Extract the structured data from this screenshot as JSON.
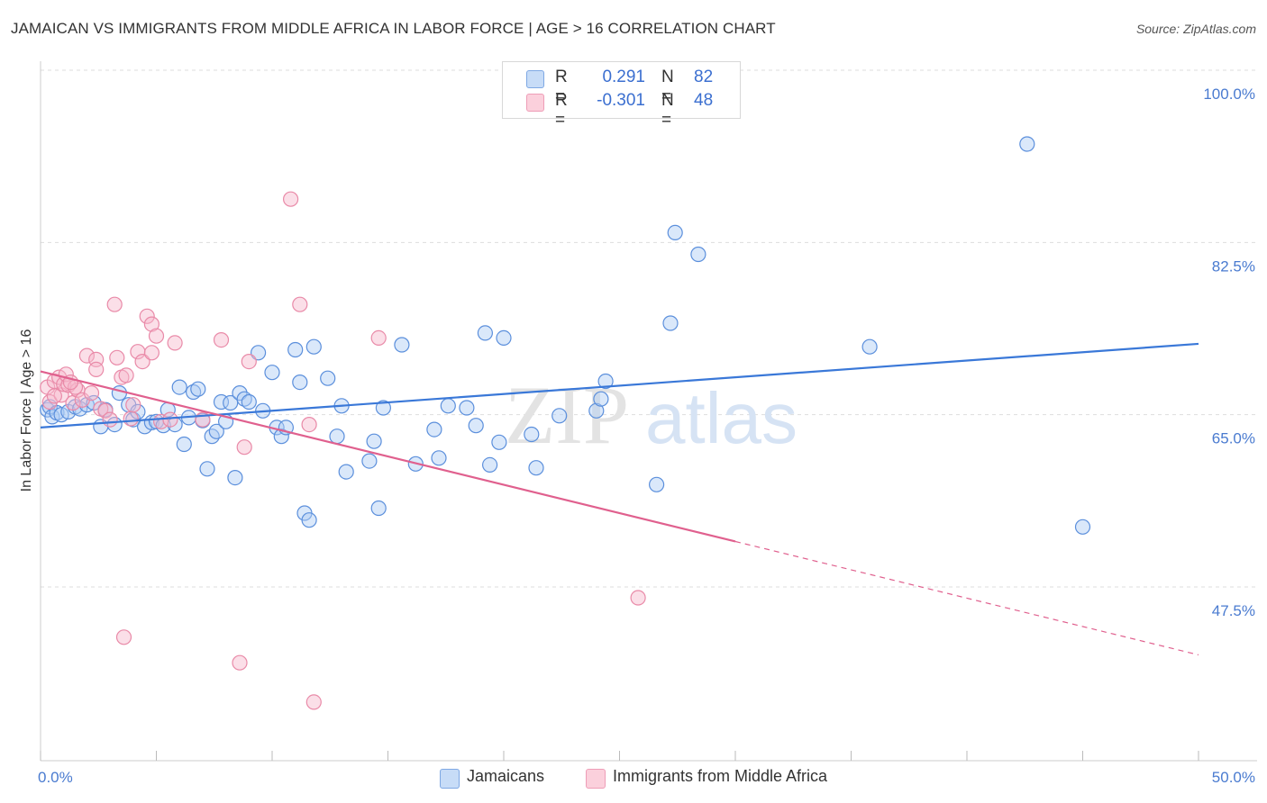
{
  "header": {
    "title": "JAMAICAN VS IMMIGRANTS FROM MIDDLE AFRICA IN LABOR FORCE | AGE > 16 CORRELATION CHART",
    "source": "Source: ZipAtlas.com"
  },
  "watermark": {
    "part1": "ZIP",
    "part2": "atlas"
  },
  "legend": {
    "rows": [
      {
        "r_label": "R =",
        "r_value": "0.291",
        "n_label": "N =",
        "n_value": "82"
      },
      {
        "r_label": "R =",
        "r_value": "-0.301",
        "n_label": "N =",
        "n_value": "48"
      }
    ]
  },
  "bottom_legend": {
    "series1": "Jamaicans",
    "series2": "Immigrants from Middle Africa"
  },
  "colors": {
    "blue_fill": "#aecbf5",
    "blue_stroke": "#5b8fdc",
    "blue_line": "#3a78d8",
    "pink_fill": "#f7b8cb",
    "pink_stroke": "#e98aa8",
    "pink_line": "#e0608e",
    "grid": "#dddddd",
    "tick_text": "#4a7bd0"
  },
  "chart_data": {
    "type": "scatter",
    "title": "JAMAICAN VS IMMIGRANTS FROM MIDDLE AFRICA IN LABOR FORCE | AGE > 16 CORRELATION CHART",
    "xlabel": "",
    "ylabel": "In Labor Force | Age > 16",
    "xlim": [
      0,
      50
    ],
    "ylim": [
      32,
      102
    ],
    "x_tick_labels": [
      "0.0%",
      "50.0%"
    ],
    "y_ticks": [
      47.5,
      65.0,
      82.5,
      100.0
    ],
    "y_tick_labels": [
      "47.5%",
      "65.0%",
      "82.5%",
      "100.0%"
    ],
    "grid": true,
    "legend_position": "top-center",
    "series": [
      {
        "name": "Jamaicans",
        "color": "#5b8fdc",
        "trend": {
          "x": [
            0,
            50
          ],
          "y": [
            63.7,
            72.2
          ],
          "dashed_from": null
        },
        "points": [
          [
            0.3,
            65.5
          ],
          [
            0.4,
            65.8
          ],
          [
            0.5,
            64.8
          ],
          [
            0.7,
            65.2
          ],
          [
            0.9,
            65.0
          ],
          [
            1.2,
            65.3
          ],
          [
            1.5,
            65.8
          ],
          [
            1.7,
            65.6
          ],
          [
            2.0,
            66.0
          ],
          [
            2.3,
            66.2
          ],
          [
            2.6,
            63.8
          ],
          [
            2.8,
            65.5
          ],
          [
            3.2,
            64.0
          ],
          [
            3.4,
            67.2
          ],
          [
            3.8,
            66.0
          ],
          [
            4.0,
            64.5
          ],
          [
            4.2,
            65.3
          ],
          [
            4.5,
            63.8
          ],
          [
            4.8,
            64.2
          ],
          [
            5.0,
            64.3
          ],
          [
            5.3,
            63.9
          ],
          [
            5.5,
            65.5
          ],
          [
            5.8,
            64.0
          ],
          [
            6.0,
            67.8
          ],
          [
            6.2,
            62.0
          ],
          [
            6.4,
            64.7
          ],
          [
            6.6,
            67.3
          ],
          [
            6.8,
            67.6
          ],
          [
            7.0,
            64.4
          ],
          [
            7.2,
            59.5
          ],
          [
            7.4,
            62.8
          ],
          [
            7.6,
            63.3
          ],
          [
            7.8,
            66.3
          ],
          [
            8.0,
            64.3
          ],
          [
            8.2,
            66.2
          ],
          [
            8.4,
            58.6
          ],
          [
            8.6,
            67.2
          ],
          [
            8.8,
            66.6
          ],
          [
            9.0,
            66.3
          ],
          [
            9.6,
            65.4
          ],
          [
            9.4,
            71.3
          ],
          [
            10.0,
            69.3
          ],
          [
            10.2,
            63.7
          ],
          [
            10.4,
            62.8
          ],
          [
            10.6,
            63.7
          ],
          [
            11.0,
            71.6
          ],
          [
            11.2,
            68.3
          ],
          [
            11.4,
            55.0
          ],
          [
            11.6,
            54.3
          ],
          [
            11.8,
            71.9
          ],
          [
            12.4,
            68.7
          ],
          [
            12.8,
            62.8
          ],
          [
            13.0,
            65.9
          ],
          [
            13.2,
            59.2
          ],
          [
            14.2,
            60.3
          ],
          [
            14.4,
            62.3
          ],
          [
            14.6,
            55.5
          ],
          [
            14.8,
            65.7
          ],
          [
            15.6,
            72.1
          ],
          [
            16.2,
            60.0
          ],
          [
            17.0,
            63.5
          ],
          [
            17.2,
            60.6
          ],
          [
            17.6,
            65.9
          ],
          [
            18.4,
            65.7
          ],
          [
            18.8,
            63.9
          ],
          [
            19.2,
            73.3
          ],
          [
            19.4,
            59.9
          ],
          [
            19.8,
            62.2
          ],
          [
            20.0,
            72.8
          ],
          [
            21.2,
            63.0
          ],
          [
            21.4,
            59.6
          ],
          [
            22.4,
            64.9
          ],
          [
            24.0,
            65.4
          ],
          [
            24.2,
            66.6
          ],
          [
            24.4,
            68.4
          ],
          [
            26.6,
            57.9
          ],
          [
            27.2,
            74.3
          ],
          [
            27.4,
            83.5
          ],
          [
            28.4,
            81.3
          ],
          [
            35.8,
            71.9
          ],
          [
            42.6,
            92.5
          ],
          [
            45.0,
            53.6
          ]
        ]
      },
      {
        "name": "Immigrants from Middle Africa",
        "color": "#e98aa8",
        "trend": {
          "x": [
            0,
            50
          ],
          "y": [
            69.4,
            40.6
          ],
          "dashed_from": 30
        },
        "points": [
          [
            0.3,
            67.8
          ],
          [
            0.4,
            66.3
          ],
          [
            0.6,
            68.4
          ],
          [
            0.8,
            68.8
          ],
          [
            0.9,
            67.0
          ],
          [
            1.0,
            68.1
          ],
          [
            1.1,
            69.1
          ],
          [
            1.2,
            68.0
          ],
          [
            1.4,
            66.2
          ],
          [
            1.6,
            67.5
          ],
          [
            1.8,
            66.5
          ],
          [
            2.0,
            71.0
          ],
          [
            2.2,
            67.2
          ],
          [
            2.4,
            70.6
          ],
          [
            2.6,
            65.6
          ],
          [
            2.8,
            65.4
          ],
          [
            3.0,
            64.5
          ],
          [
            3.2,
            76.2
          ],
          [
            3.3,
            70.8
          ],
          [
            3.5,
            68.8
          ],
          [
            3.7,
            69.0
          ],
          [
            3.9,
            64.6
          ],
          [
            4.0,
            66.0
          ],
          [
            4.2,
            71.4
          ],
          [
            4.4,
            70.4
          ],
          [
            4.6,
            75.0
          ],
          [
            4.8,
            74.2
          ],
          [
            5.0,
            73.0
          ],
          [
            5.2,
            64.3
          ],
          [
            5.8,
            72.3
          ],
          [
            7.0,
            64.5
          ],
          [
            7.8,
            72.6
          ],
          [
            8.8,
            61.7
          ],
          [
            8.6,
            39.8
          ],
          [
            9.0,
            70.4
          ],
          [
            10.8,
            86.9
          ],
          [
            11.2,
            76.2
          ],
          [
            11.6,
            64.0
          ],
          [
            11.8,
            35.8
          ],
          [
            14.6,
            72.8
          ],
          [
            25.8,
            46.4
          ],
          [
            3.6,
            42.4
          ],
          [
            2.4,
            69.6
          ],
          [
            1.5,
            67.8
          ],
          [
            0.6,
            66.9
          ],
          [
            1.3,
            68.3
          ],
          [
            5.6,
            64.5
          ],
          [
            4.8,
            71.3
          ]
        ]
      }
    ]
  }
}
